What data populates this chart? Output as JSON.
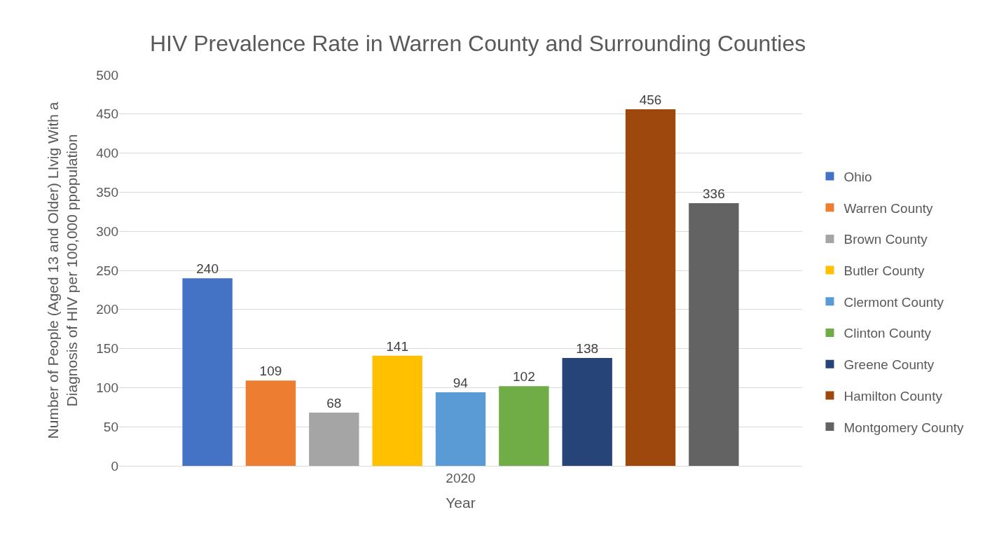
{
  "chart_data": {
    "type": "bar",
    "title": "HIV Prevalence Rate in Warren County and Surrounding Counties",
    "xlabel": "Year",
    "ylabel": "Number of People (Aged 13 and Older) LIvig With a Diagnosis of HIV per 100,000 ppopulation",
    "categories": [
      "2020"
    ],
    "series": [
      {
        "name": "Ohio",
        "color": "#4472c4",
        "values": [
          240
        ]
      },
      {
        "name": "Warren County",
        "color": "#ed7d31",
        "values": [
          109
        ]
      },
      {
        "name": "Brown County",
        "color": "#a5a5a5",
        "values": [
          68
        ]
      },
      {
        "name": "Butler County",
        "color": "#ffc000",
        "values": [
          141
        ]
      },
      {
        "name": "Clermont County",
        "color": "#5b9bd5",
        "values": [
          94
        ]
      },
      {
        "name": "Clinton County",
        "color": "#70ad47",
        "values": [
          102
        ]
      },
      {
        "name": "Greene County",
        "color": "#264478",
        "values": [
          138
        ]
      },
      {
        "name": "Hamilton County",
        "color": "#9e480e",
        "values": [
          456
        ]
      },
      {
        "name": "Montgomery County",
        "color": "#636363",
        "values": [
          336
        ]
      }
    ],
    "ylim": [
      0,
      500
    ],
    "yticks": [
      0,
      50,
      100,
      150,
      200,
      250,
      300,
      350,
      400,
      450,
      500
    ],
    "grid": "y",
    "legend": "right",
    "data_labels": true
  }
}
